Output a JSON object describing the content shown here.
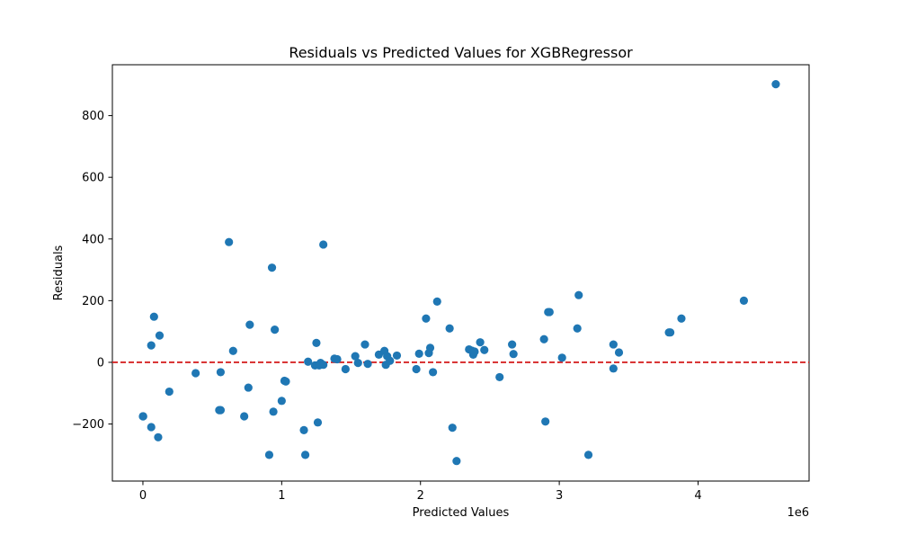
{
  "chart_data": {
    "type": "scatter",
    "title": "Residuals vs Predicted Values for XGBRegressor",
    "xlabel": "Predicted Values",
    "ylabel": "Residuals",
    "x_offset_label": "1e6",
    "x_scale": 1000000,
    "xlim": [
      -220000,
      4800000
    ],
    "ylim": [
      -385,
      965
    ],
    "x_ticks": [
      0,
      1000000,
      2000000,
      3000000,
      4000000
    ],
    "x_tick_labels": [
      "0",
      "1",
      "2",
      "3",
      "4"
    ],
    "y_ticks": [
      -200,
      0,
      200,
      400,
      600,
      800
    ],
    "y_tick_labels": [
      "−200",
      "0",
      "200",
      "400",
      "600",
      "800"
    ],
    "marker_color": "#1f77b4",
    "reference_line": {
      "y": 0,
      "style": "dashed",
      "color": "#d62728"
    },
    "grid": false,
    "series": [
      {
        "points": [
          [
            0,
            -175
          ],
          [
            2000,
            -175
          ],
          [
            60000,
            -210
          ],
          [
            60000,
            55
          ],
          [
            80000,
            148
          ],
          [
            110000,
            -243
          ],
          [
            120000,
            87
          ],
          [
            190000,
            -95
          ],
          [
            380000,
            -35
          ],
          [
            550000,
            -155
          ],
          [
            560000,
            -155
          ],
          [
            560000,
            -32
          ],
          [
            620000,
            390
          ],
          [
            650000,
            37
          ],
          [
            730000,
            -175
          ],
          [
            760000,
            -82
          ],
          [
            770000,
            122
          ],
          [
            910000,
            -300
          ],
          [
            930000,
            307
          ],
          [
            940000,
            -160
          ],
          [
            950000,
            106
          ],
          [
            1000000,
            -125
          ],
          [
            1020000,
            -60
          ],
          [
            1030000,
            -62
          ],
          [
            1160000,
            -220
          ],
          [
            1170000,
            -300
          ],
          [
            1190000,
            2
          ],
          [
            1240000,
            -10
          ],
          [
            1250000,
            63
          ],
          [
            1260000,
            -195
          ],
          [
            1270000,
            -10
          ],
          [
            1280000,
            -2
          ],
          [
            1300000,
            -8
          ],
          [
            1300000,
            382
          ],
          [
            1380000,
            12
          ],
          [
            1400000,
            10
          ],
          [
            1460000,
            -22
          ],
          [
            1530000,
            20
          ],
          [
            1550000,
            -2
          ],
          [
            1600000,
            58
          ],
          [
            1620000,
            -5
          ],
          [
            1700000,
            25
          ],
          [
            1740000,
            37
          ],
          [
            1750000,
            -8
          ],
          [
            1760000,
            20
          ],
          [
            1780000,
            5
          ],
          [
            1830000,
            22
          ],
          [
            1970000,
            -22
          ],
          [
            1990000,
            28
          ],
          [
            2040000,
            142
          ],
          [
            2060000,
            30
          ],
          [
            2070000,
            47
          ],
          [
            2090000,
            -32
          ],
          [
            2120000,
            197
          ],
          [
            2210000,
            110
          ],
          [
            2230000,
            -212
          ],
          [
            2260000,
            -320
          ],
          [
            2350000,
            42
          ],
          [
            2370000,
            38
          ],
          [
            2380000,
            25
          ],
          [
            2390000,
            35
          ],
          [
            2430000,
            65
          ],
          [
            2460000,
            40
          ],
          [
            2570000,
            -48
          ],
          [
            2660000,
            58
          ],
          [
            2670000,
            27
          ],
          [
            2890000,
            75
          ],
          [
            2900000,
            -192
          ],
          [
            2920000,
            163
          ],
          [
            2930000,
            163
          ],
          [
            3020000,
            15
          ],
          [
            3130000,
            110
          ],
          [
            3140000,
            218
          ],
          [
            3210000,
            -300
          ],
          [
            3390000,
            58
          ],
          [
            3390000,
            -20
          ],
          [
            3430000,
            32
          ],
          [
            3790000,
            97
          ],
          [
            3800000,
            97
          ],
          [
            3880000,
            142
          ],
          [
            4330000,
            200
          ],
          [
            4560000,
            902
          ]
        ]
      }
    ]
  }
}
